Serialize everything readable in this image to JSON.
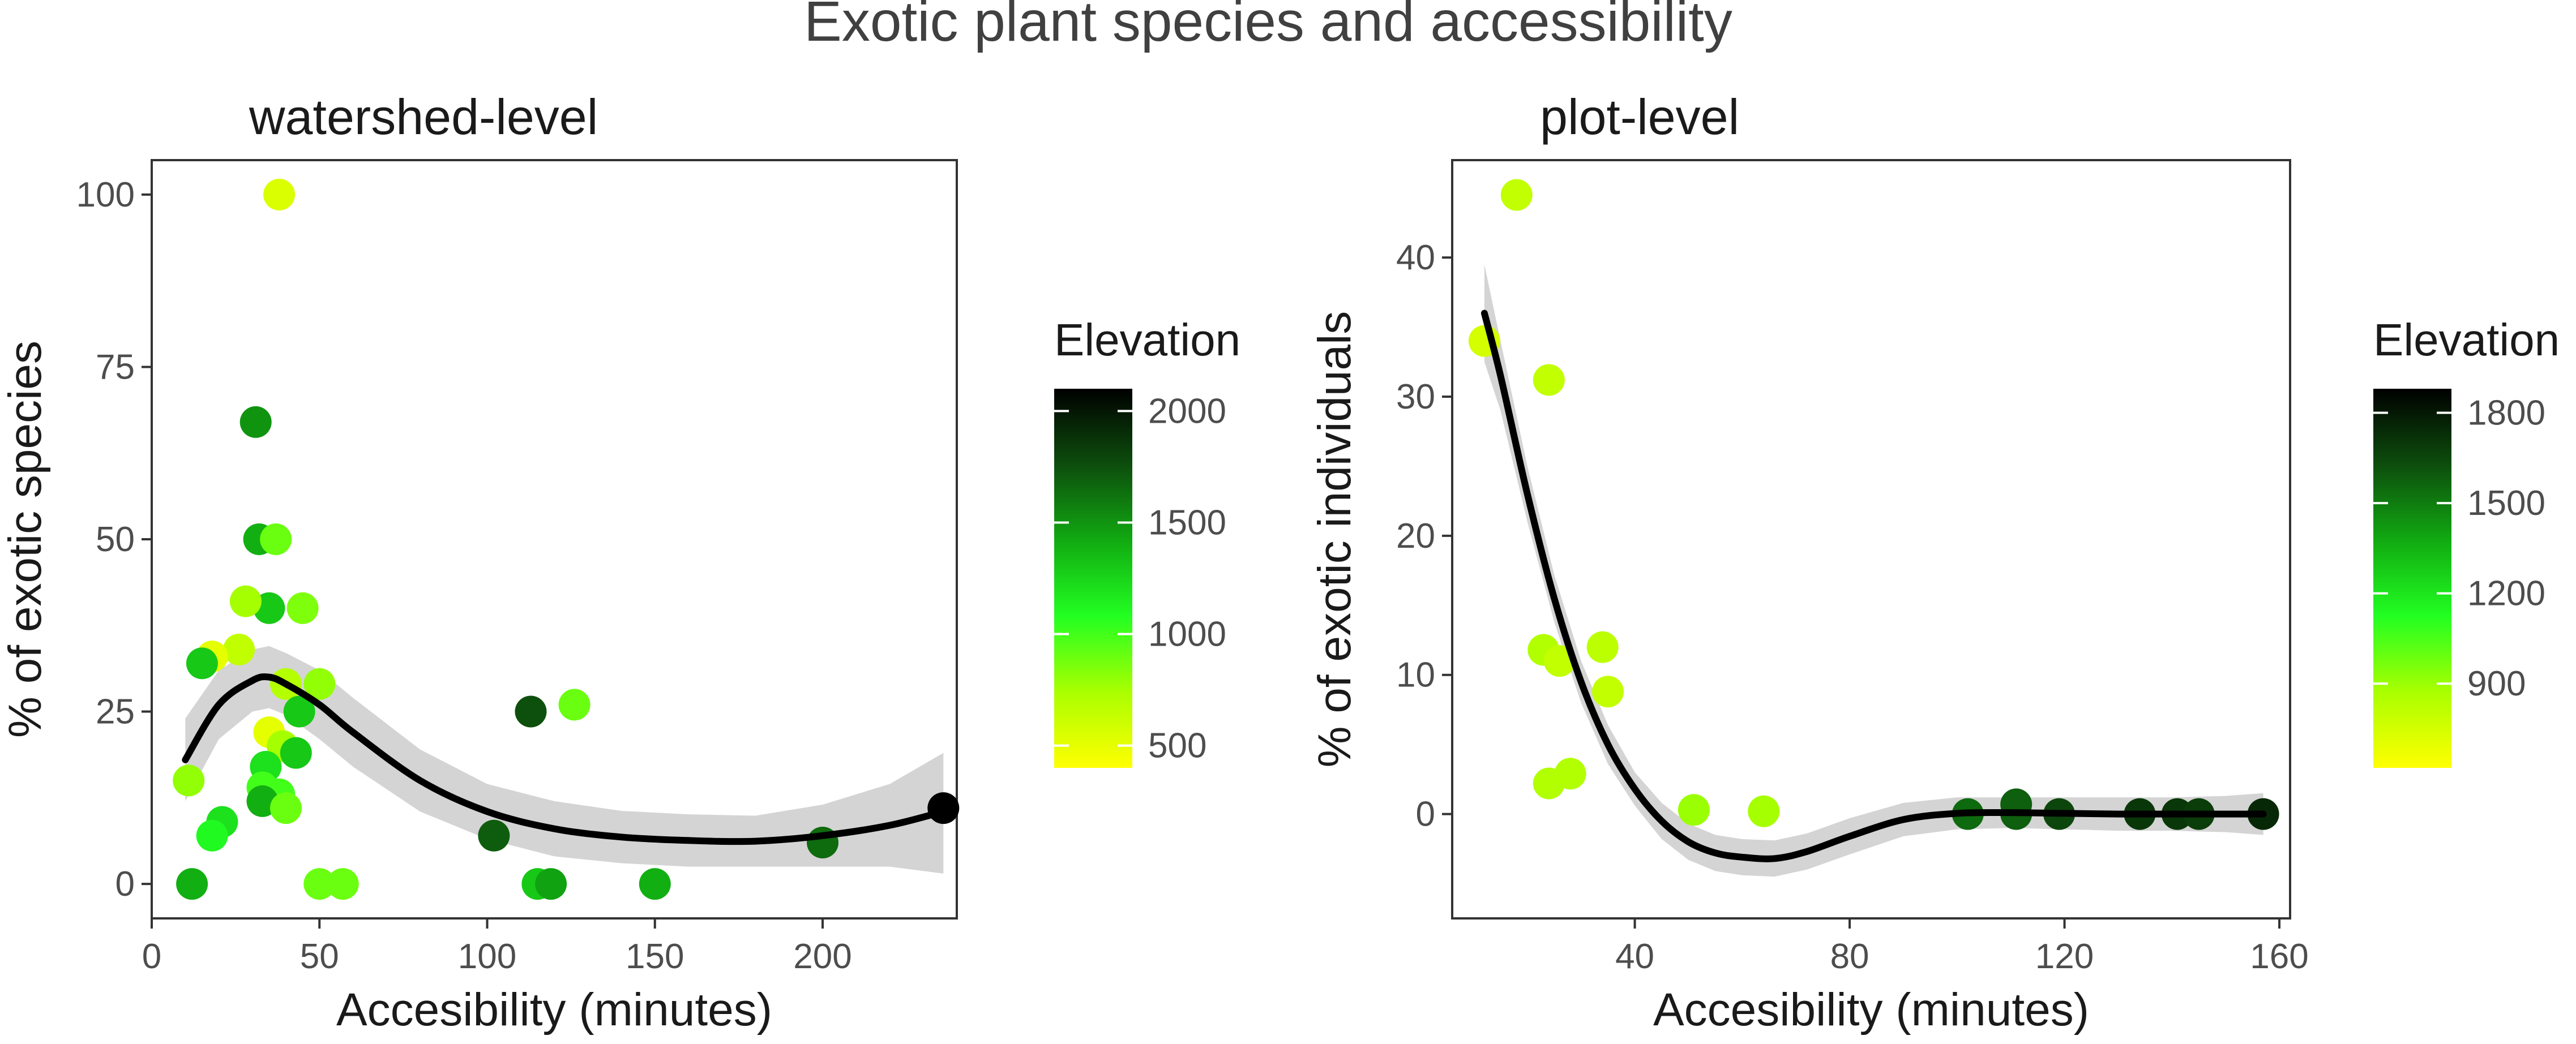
{
  "figure": {
    "title": "Exotic plant species and accessibility"
  },
  "chart_data": [
    {
      "type": "scatter",
      "panel": "watershed-level",
      "title": "watershed-level",
      "xlabel": "Accesibility (minutes)",
      "ylabel": "% of exotic species",
      "xlim": [
        0,
        240
      ],
      "ylim": [
        -5,
        105
      ],
      "xticks": [
        0,
        50,
        100,
        150,
        200
      ],
      "yticks": [
        0,
        25,
        50,
        75,
        100
      ],
      "grid": false,
      "colorbar": {
        "title": "Elevation",
        "range": [
          400,
          2100
        ],
        "ticks": [
          500,
          1000,
          1500,
          2000
        ],
        "colors": [
          "#ffff00",
          "#aaff00",
          "#22ff22",
          "#11aa11",
          "#0d4d0d",
          "#000000"
        ]
      },
      "points": [
        {
          "x": 38,
          "y": 100,
          "elev": 550
        },
        {
          "x": 31,
          "y": 67,
          "elev": 1500
        },
        {
          "x": 32,
          "y": 50,
          "elev": 1400
        },
        {
          "x": 37,
          "y": 50,
          "elev": 900
        },
        {
          "x": 35,
          "y": 40,
          "elev": 1300
        },
        {
          "x": 28,
          "y": 41,
          "elev": 750
        },
        {
          "x": 45,
          "y": 40,
          "elev": 850
        },
        {
          "x": 26,
          "y": 34,
          "elev": 650
        },
        {
          "x": 18,
          "y": 33,
          "elev": 500
        },
        {
          "x": 15,
          "y": 32,
          "elev": 1300
        },
        {
          "x": 40,
          "y": 29,
          "elev": 700
        },
        {
          "x": 50,
          "y": 29,
          "elev": 800
        },
        {
          "x": 44,
          "y": 25,
          "elev": 1300
        },
        {
          "x": 35,
          "y": 22,
          "elev": 500
        },
        {
          "x": 39,
          "y": 20,
          "elev": 750
        },
        {
          "x": 43,
          "y": 19,
          "elev": 1300
        },
        {
          "x": 34,
          "y": 17,
          "elev": 1200
        },
        {
          "x": 11,
          "y": 15,
          "elev": 800
        },
        {
          "x": 33,
          "y": 14,
          "elev": 1000
        },
        {
          "x": 38,
          "y": 13,
          "elev": 1000
        },
        {
          "x": 33,
          "y": 12,
          "elev": 1400
        },
        {
          "x": 40,
          "y": 11,
          "elev": 900
        },
        {
          "x": 21,
          "y": 9,
          "elev": 1200
        },
        {
          "x": 18,
          "y": 7,
          "elev": 1100
        },
        {
          "x": 12,
          "y": 0,
          "elev": 1400
        },
        {
          "x": 50,
          "y": 0,
          "elev": 900
        },
        {
          "x": 57,
          "y": 0,
          "elev": 900
        },
        {
          "x": 115,
          "y": 0,
          "elev": 1300
        },
        {
          "x": 119,
          "y": 0,
          "elev": 1450
        },
        {
          "x": 150,
          "y": 0,
          "elev": 1400
        },
        {
          "x": 102,
          "y": 7,
          "elev": 1700
        },
        {
          "x": 113,
          "y": 25,
          "elev": 1750
        },
        {
          "x": 126,
          "y": 26,
          "elev": 900
        },
        {
          "x": 200,
          "y": 6,
          "elev": 1650
        },
        {
          "x": 236,
          "y": 11,
          "elev": 2100
        }
      ],
      "smooth": {
        "x": [
          10,
          20,
          30,
          35,
          40,
          50,
          60,
          80,
          100,
          120,
          140,
          160,
          180,
          200,
          220,
          236
        ],
        "y": [
          18,
          26,
          29.5,
          30,
          29,
          26,
          22,
          15,
          10.5,
          8,
          6.8,
          6.3,
          6.2,
          7,
          8.5,
          10.5
        ],
        "ymin": [
          12,
          21,
          25,
          25.5,
          24.5,
          21,
          17,
          10.5,
          6.5,
          4,
          3,
          2.5,
          2.5,
          2.5,
          2.5,
          1.5
        ],
        "ymax": [
          24,
          31,
          34,
          34.5,
          33.5,
          31,
          27,
          19.5,
          14.5,
          12,
          10.6,
          10.1,
          9.9,
          11.5,
          14.5,
          19
        ]
      }
    },
    {
      "type": "scatter",
      "panel": "plot-level",
      "title": "plot-level",
      "xlabel": "Accesibility (minutes)",
      "ylabel": "% of exotic individuals",
      "xlim": [
        6,
        162
      ],
      "ylim": [
        -7.5,
        47
      ],
      "xticks": [
        40,
        80,
        120,
        160
      ],
      "yticks": [
        0,
        10,
        20,
        30,
        40
      ],
      "grid": false,
      "colorbar": {
        "title": "Elevation",
        "range": [
          620,
          1880
        ],
        "ticks": [
          900,
          1200,
          1500,
          1800
        ],
        "colors": [
          "#ffff00",
          "#aaff00",
          "#22ff22",
          "#11aa11",
          "#0d4d0d",
          "#000000"
        ]
      },
      "points": [
        {
          "x": 18,
          "y": 44.5,
          "elev": 800
        },
        {
          "x": 12,
          "y": 34,
          "elev": 750
        },
        {
          "x": 24,
          "y": 31.2,
          "elev": 800
        },
        {
          "x": 23,
          "y": 11.8,
          "elev": 850
        },
        {
          "x": 26,
          "y": 11,
          "elev": 800
        },
        {
          "x": 34,
          "y": 12,
          "elev": 820
        },
        {
          "x": 35,
          "y": 8.8,
          "elev": 800
        },
        {
          "x": 24,
          "y": 2.2,
          "elev": 850
        },
        {
          "x": 28,
          "y": 2.9,
          "elev": 850
        },
        {
          "x": 51,
          "y": 0.3,
          "elev": 900
        },
        {
          "x": 64,
          "y": 0.2,
          "elev": 880
        },
        {
          "x": 102,
          "y": 0,
          "elev": 1550
        },
        {
          "x": 111,
          "y": 0.7,
          "elev": 1580
        },
        {
          "x": 111,
          "y": 0,
          "elev": 1580
        },
        {
          "x": 119,
          "y": 0,
          "elev": 1650
        },
        {
          "x": 134,
          "y": 0,
          "elev": 1700
        },
        {
          "x": 141,
          "y": 0,
          "elev": 1700
        },
        {
          "x": 145,
          "y": 0,
          "elev": 1680
        },
        {
          "x": 157,
          "y": 0,
          "elev": 1750
        }
      ],
      "smooth": {
        "x": [
          12,
          15,
          20,
          25,
          30,
          35,
          40,
          45,
          50,
          55,
          60,
          66,
          72,
          80,
          90,
          100,
          110,
          120,
          130,
          140,
          150,
          157
        ],
        "y": [
          36,
          31.5,
          23,
          15.5,
          9.5,
          5,
          1.8,
          -0.5,
          -2,
          -2.8,
          -3.1,
          -3.2,
          -2.7,
          -1.6,
          -0.4,
          0.05,
          0.1,
          0.05,
          0,
          0,
          0,
          0
        ],
        "ymin": [
          32.5,
          29,
          21,
          13.8,
          8,
          3.6,
          0.6,
          -1.8,
          -3.3,
          -4.1,
          -4.4,
          -4.5,
          -4,
          -2.9,
          -1.6,
          -1.1,
          -1,
          -1.1,
          -1.2,
          -1.2,
          -1.3,
          -1.5
        ],
        "ymax": [
          39.5,
          34,
          25,
          17.2,
          11,
          6.4,
          3,
          0.8,
          -0.7,
          -1.5,
          -1.8,
          -1.9,
          -1.4,
          -0.3,
          0.8,
          1.2,
          1.2,
          1.2,
          1.2,
          1.2,
          1.3,
          1.5
        ]
      }
    }
  ]
}
